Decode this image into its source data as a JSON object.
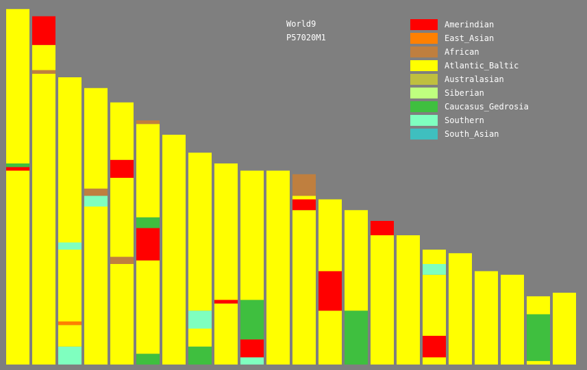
{
  "chart_data": {
    "type": "bar",
    "title": "World9",
    "subtitle": "P57020M1",
    "ylim": [
      0,
      1
    ],
    "components": [
      {
        "name": "Amerindian",
        "color": "#ff0000"
      },
      {
        "name": "East_Asian",
        "color": "#ff8000"
      },
      {
        "name": "African",
        "color": "#bf7f3f"
      },
      {
        "name": "Atlantic_Baltic",
        "color": "#ffff00"
      },
      {
        "name": "Australasian",
        "color": "#bfbf3f"
      },
      {
        "name": "Siberian",
        "color": "#bfff7f"
      },
      {
        "name": "Caucasus_Gedrosia",
        "color": "#3fbf3f"
      },
      {
        "name": "Southern",
        "color": "#7fffbf"
      },
      {
        "name": "South_Asian",
        "color": "#3fbfbf"
      }
    ],
    "bars": [
      {
        "total": 0.99,
        "bands": [
          [
            "Atlantic_Baltic",
            0.0,
            0.54
          ],
          [
            "Amerindian",
            0.54,
            0.55
          ],
          [
            "Caucasus_Gedrosia",
            0.55,
            0.56
          ],
          [
            "Atlantic_Baltic",
            0.56,
            0.99
          ]
        ]
      },
      {
        "total": 0.97,
        "bands": [
          [
            "Atlantic_Baltic",
            0.0,
            0.81
          ],
          [
            "African",
            0.81,
            0.82
          ],
          [
            "Atlantic_Baltic",
            0.82,
            0.89
          ],
          [
            "Amerindian",
            0.89,
            0.97
          ]
        ]
      },
      {
        "total": 0.8,
        "bands": [
          [
            "Southern",
            0.0,
            0.05
          ],
          [
            "Atlantic_Baltic",
            0.05,
            0.11
          ],
          [
            "East_Asian",
            0.11,
            0.12
          ],
          [
            "Atlantic_Baltic",
            0.12,
            0.32
          ],
          [
            "Southern",
            0.32,
            0.34
          ],
          [
            "Atlantic_Baltic",
            0.34,
            0.8
          ]
        ]
      },
      {
        "total": 0.77,
        "bands": [
          [
            "Atlantic_Baltic",
            0.0,
            0.44
          ],
          [
            "Southern",
            0.44,
            0.47
          ],
          [
            "African",
            0.47,
            0.49
          ],
          [
            "Atlantic_Baltic",
            0.49,
            0.77
          ]
        ]
      },
      {
        "total": 0.73,
        "bands": [
          [
            "Atlantic_Baltic",
            0.0,
            0.28
          ],
          [
            "African",
            0.28,
            0.3
          ],
          [
            "Atlantic_Baltic",
            0.3,
            0.52
          ],
          [
            "Amerindian",
            0.52,
            0.57
          ],
          [
            "Atlantic_Baltic",
            0.57,
            0.73
          ]
        ]
      },
      {
        "total": 0.68,
        "bands": [
          [
            "Caucasus_Gedrosia",
            0.0,
            0.03
          ],
          [
            "Atlantic_Baltic",
            0.03,
            0.29
          ],
          [
            "Amerindian",
            0.29,
            0.38
          ],
          [
            "Caucasus_Gedrosia",
            0.38,
            0.41
          ],
          [
            "Atlantic_Baltic",
            0.41,
            0.67
          ],
          [
            "African",
            0.67,
            0.68
          ]
        ]
      },
      {
        "total": 0.64,
        "bands": [
          [
            "Atlantic_Baltic",
            0.0,
            0.64
          ]
        ]
      },
      {
        "total": 0.59,
        "bands": [
          [
            "Caucasus_Gedrosia",
            0.0,
            0.05
          ],
          [
            "Atlantic_Baltic",
            0.05,
            0.1
          ],
          [
            "Southern",
            0.1,
            0.15
          ],
          [
            "Atlantic_Baltic",
            0.15,
            0.59
          ]
        ]
      },
      {
        "total": 0.56,
        "bands": [
          [
            "Atlantic_Baltic",
            0.0,
            0.17
          ],
          [
            "Amerindian",
            0.17,
            0.18
          ],
          [
            "Atlantic_Baltic",
            0.18,
            0.56
          ]
        ]
      },
      {
        "total": 0.54,
        "bands": [
          [
            "Southern",
            0.0,
            0.02
          ],
          [
            "Amerindian",
            0.02,
            0.07
          ],
          [
            "Caucasus_Gedrosia",
            0.07,
            0.18
          ],
          [
            "Atlantic_Baltic",
            0.18,
            0.54
          ]
        ]
      },
      {
        "total": 0.54,
        "bands": [
          [
            "Atlantic_Baltic",
            0.0,
            0.54
          ]
        ]
      },
      {
        "total": 0.53,
        "bands": [
          [
            "Atlantic_Baltic",
            0.0,
            0.43
          ],
          [
            "Amerindian",
            0.43,
            0.46
          ],
          [
            "Atlantic_Baltic",
            0.46,
            0.47
          ],
          [
            "African",
            0.47,
            0.53
          ]
        ]
      },
      {
        "total": 0.46,
        "bands": [
          [
            "Atlantic_Baltic",
            0.0,
            0.15
          ],
          [
            "Amerindian",
            0.15,
            0.26
          ],
          [
            "Atlantic_Baltic",
            0.26,
            0.46
          ]
        ]
      },
      {
        "total": 0.43,
        "bands": [
          [
            "Caucasus_Gedrosia",
            0.0,
            0.15
          ],
          [
            "Atlantic_Baltic",
            0.15,
            0.43
          ]
        ]
      },
      {
        "total": 0.4,
        "bands": [
          [
            "Atlantic_Baltic",
            0.0,
            0.36
          ],
          [
            "Amerindian",
            0.36,
            0.4
          ]
        ]
      },
      {
        "total": 0.36,
        "bands": [
          [
            "Atlantic_Baltic",
            0.0,
            0.36
          ]
        ]
      },
      {
        "total": 0.32,
        "bands": [
          [
            "Atlantic_Baltic",
            0.0,
            0.02
          ],
          [
            "Amerindian",
            0.02,
            0.08
          ],
          [
            "Atlantic_Baltic",
            0.08,
            0.25
          ],
          [
            "Southern",
            0.25,
            0.28
          ],
          [
            "Atlantic_Baltic",
            0.28,
            0.32
          ]
        ]
      },
      {
        "total": 0.31,
        "bands": [
          [
            "Atlantic_Baltic",
            0.0,
            0.31
          ]
        ]
      },
      {
        "total": 0.26,
        "bands": [
          [
            "Atlantic_Baltic",
            0.0,
            0.26
          ]
        ]
      },
      {
        "total": 0.25,
        "bands": [
          [
            "Atlantic_Baltic",
            0.0,
            0.25
          ]
        ]
      },
      {
        "total": 0.19,
        "bands": [
          [
            "Atlantic_Baltic",
            0.0,
            0.01
          ],
          [
            "Caucasus_Gedrosia",
            0.01,
            0.14
          ],
          [
            "Atlantic_Baltic",
            0.14,
            0.19
          ]
        ]
      },
      {
        "total": 0.2,
        "bands": [
          [
            "Atlantic_Baltic",
            0.0,
            0.2
          ]
        ]
      }
    ]
  }
}
